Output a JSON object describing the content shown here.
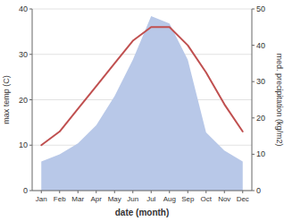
{
  "chart_data": {
    "type": "line",
    "categories": [
      "Jan",
      "Feb",
      "Mar",
      "Apr",
      "May",
      "Jun",
      "Jul",
      "Aug",
      "Sep",
      "Oct",
      "Nov",
      "Dec"
    ],
    "xlabel": "date (month)",
    "ylabel": "max temp (C)",
    "y2label": "med. precipitation (kg/m2)",
    "series": [
      {
        "type": "area",
        "axis": "y2",
        "color": "#b8c8e8",
        "values": [
          8,
          10,
          13,
          18,
          26,
          36,
          48,
          46,
          36,
          16,
          11,
          8
        ]
      },
      {
        "type": "line",
        "color": "#c05050",
        "values": [
          10,
          13,
          18,
          23,
          28,
          33,
          36,
          36,
          32,
          26,
          19,
          13
        ]
      }
    ],
    "ylim": [
      0,
      40
    ],
    "yticks": [
      0,
      10,
      20,
      30,
      40
    ],
    "y2lim": [
      0,
      50
    ],
    "y2ticks": [
      0,
      10,
      20,
      30,
      40,
      50
    ],
    "grid": true
  }
}
